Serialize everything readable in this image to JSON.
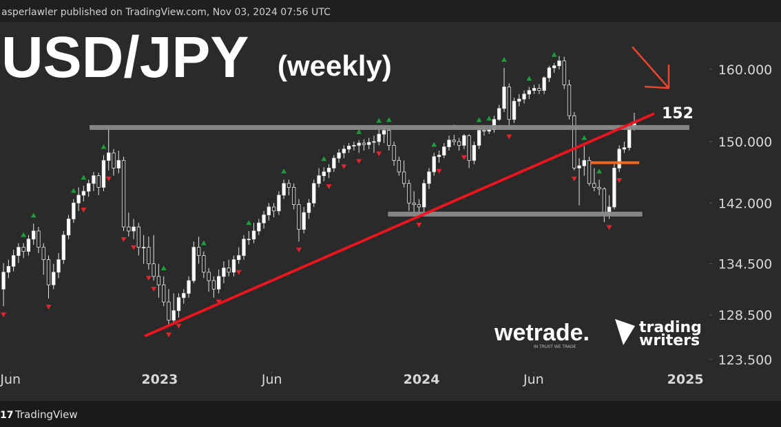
{
  "header": {
    "text": "asperlawler published on TradingView.com, Nov 03, 2024 07:56 UTC"
  },
  "footer": {
    "brand": "TradingView"
  },
  "watermarks": {
    "wetrade": "wetrade.",
    "wetrade_tagline": "IN TRUST WE TRADE",
    "writers_line1": "trading",
    "writers_line2": "writers"
  },
  "chart_data": {
    "type": "candlestick",
    "title": "USD/JPY",
    "subtitle": "(weekly)",
    "log_scale": true,
    "up_color": "#ffffff",
    "down_color": "#262626",
    "wick_color": "#e8e8e8",
    "xlim": [
      -0.7,
      141
    ],
    "xticks": [
      {
        "value": 1.4,
        "label": "Jun"
      },
      {
        "value": 31.2,
        "label": "2023"
      },
      {
        "value": 53.6,
        "label": "Jun"
      },
      {
        "value": 83.5,
        "label": "2024"
      },
      {
        "value": 105.9,
        "label": "Jun"
      },
      {
        "value": 136.2,
        "label": "2025"
      }
    ],
    "ylim": [
      122.2,
      167.1
    ],
    "yticks": [
      {
        "value": 160,
        "label": "160.000"
      },
      {
        "value": 150,
        "label": "150.000"
      },
      {
        "value": 142,
        "label": "142.000"
      },
      {
        "value": 134.5,
        "label": "134.500"
      },
      {
        "value": 128.5,
        "label": "128.500"
      },
      {
        "value": 123.5,
        "label": "123.500"
      }
    ],
    "ohlc": [
      [
        131.5,
        134.6,
        129.5,
        133.5
      ],
      [
        133.5,
        135.0,
        132.8,
        134.2
      ],
      [
        134.2,
        136.2,
        133.6,
        135.5
      ],
      [
        135.5,
        137.0,
        134.6,
        136.5
      ],
      [
        136.5,
        137.0,
        135.2,
        136.0
      ],
      [
        136.0,
        138.0,
        135.5,
        137.5
      ],
      [
        137.5,
        139.4,
        136.8,
        138.5
      ],
      [
        138.5,
        139.0,
        135.8,
        136.5
      ],
      [
        136.5,
        137.0,
        133.2,
        135.0
      ],
      [
        135.0,
        135.5,
        130.4,
        132.0
      ],
      [
        132.0,
        134.5,
        131.5,
        133.5
      ],
      [
        133.5,
        135.8,
        132.8,
        135.0
      ],
      [
        135.0,
        138.5,
        134.5,
        138.0
      ],
      [
        138.0,
        140.5,
        137.5,
        140.0
      ],
      [
        140.0,
        142.5,
        139.5,
        142.0
      ],
      [
        142.0,
        144.0,
        141.0,
        143.0
      ],
      [
        143.0,
        144.2,
        142.2,
        143.5
      ],
      [
        143.5,
        145.0,
        142.8,
        144.5
      ],
      [
        144.5,
        146.0,
        143.5,
        145.5
      ],
      [
        145.5,
        145.9,
        143.0,
        144.0
      ],
      [
        144.0,
        148.2,
        143.5,
        147.5
      ],
      [
        147.5,
        151.9,
        146.2,
        148.5
      ],
      [
        148.5,
        149.0,
        145.5,
        146.5
      ],
      [
        146.5,
        148.8,
        145.8,
        147.5
      ],
      [
        147.5,
        148.0,
        138.5,
        139.0
      ],
      [
        139.0,
        140.8,
        137.8,
        138.5
      ],
      [
        138.5,
        140.0,
        137.5,
        139.0
      ],
      [
        139.0,
        139.5,
        135.5,
        136.5
      ],
      [
        136.5,
        138.0,
        134.5,
        136.5
      ],
      [
        136.5,
        137.8,
        133.8,
        134.5
      ],
      [
        134.5,
        138.0,
        132.5,
        133.0
      ],
      [
        133.0,
        134.5,
        130.5,
        132.0
      ],
      [
        132.0,
        133.0,
        129.5,
        130.0
      ],
      [
        130.0,
        131.5,
        127.2,
        127.9
      ],
      [
        127.9,
        131.0,
        127.5,
        129.0
      ],
      [
        129.0,
        131.0,
        128.2,
        130.5
      ],
      [
        130.5,
        131.5,
        129.8,
        131.0
      ],
      [
        131.0,
        133.0,
        130.5,
        132.5
      ],
      [
        132.5,
        137.2,
        132.2,
        136.5
      ],
      [
        136.5,
        137.8,
        134.5,
        135.5
      ],
      [
        135.5,
        136.0,
        132.8,
        133.5
      ],
      [
        133.5,
        134.0,
        131.2,
        132.5
      ],
      [
        132.5,
        133.0,
        130.5,
        131.5
      ],
      [
        131.5,
        133.8,
        131.0,
        133.0
      ],
      [
        133.0,
        134.8,
        132.2,
        134.0
      ],
      [
        134.0,
        135.0,
        133.0,
        133.5
      ],
      [
        133.5,
        135.5,
        133.0,
        135.0
      ],
      [
        135.0,
        136.5,
        134.5,
        135.5
      ],
      [
        135.5,
        138.0,
        135.0,
        137.5
      ],
      [
        137.5,
        138.5,
        136.8,
        137.5
      ],
      [
        137.5,
        139.5,
        137.0,
        138.5
      ],
      [
        138.5,
        140.0,
        138.0,
        139.5
      ],
      [
        139.5,
        141.0,
        138.8,
        140.5
      ],
      [
        140.5,
        142.0,
        139.8,
        141.5
      ],
      [
        141.5,
        142.0,
        140.2,
        141.0
      ],
      [
        141.0,
        143.5,
        140.5,
        143.0
      ],
      [
        143.0,
        145.0,
        142.5,
        144.5
      ],
      [
        144.5,
        145.0,
        143.0,
        144.0
      ],
      [
        144.0,
        144.5,
        141.2,
        141.8
      ],
      [
        141.8,
        142.5,
        137.2,
        138.7
      ],
      [
        138.7,
        141.5,
        138.2,
        140.8
      ],
      [
        140.8,
        142.5,
        140.0,
        142.0
      ],
      [
        142.0,
        145.0,
        141.5,
        144.5
      ],
      [
        144.5,
        146.5,
        144.0,
        145.5
      ],
      [
        145.5,
        146.6,
        144.8,
        146.0
      ],
      [
        146.0,
        147.0,
        145.2,
        146.5
      ],
      [
        146.5,
        148.2,
        146.0,
        147.8
      ],
      [
        147.8,
        149.0,
        147.2,
        148.5
      ],
      [
        148.5,
        149.5,
        147.8,
        149.0
      ],
      [
        149.0,
        149.8,
        148.5,
        149.4
      ],
      [
        149.4,
        150.0,
        148.8,
        149.5
      ],
      [
        149.5,
        150.2,
        148.5,
        149.8
      ],
      [
        149.8,
        150.3,
        148.8,
        149.6
      ],
      [
        149.6,
        150.5,
        149.0,
        149.9
      ],
      [
        149.9,
        150.8,
        148.5,
        150.0
      ],
      [
        150.0,
        151.7,
        149.5,
        151.0
      ],
      [
        151.0,
        151.9,
        149.8,
        151.5
      ],
      [
        151.5,
        151.8,
        148.8,
        149.5
      ],
      [
        149.5,
        150.0,
        146.8,
        147.5
      ],
      [
        147.5,
        148.0,
        145.5,
        146.0
      ],
      [
        146.0,
        147.5,
        144.0,
        144.5
      ],
      [
        144.5,
        145.0,
        141.0,
        142.0
      ],
      [
        142.0,
        143.5,
        140.8,
        141.8
      ],
      [
        141.8,
        142.5,
        140.3,
        141.5
      ],
      [
        141.5,
        145.0,
        140.8,
        144.5
      ],
      [
        144.5,
        146.5,
        143.8,
        146.0
      ],
      [
        146.0,
        148.5,
        145.5,
        148.0
      ],
      [
        148.0,
        148.8,
        147.2,
        148.2
      ],
      [
        148.2,
        149.8,
        147.8,
        149.3
      ],
      [
        149.3,
        150.8,
        148.8,
        150.2
      ],
      [
        150.2,
        150.9,
        149.5,
        150.0
      ],
      [
        150.0,
        150.5,
        148.8,
        149.5
      ],
      [
        149.5,
        151.0,
        149.0,
        150.8
      ],
      [
        150.8,
        151.0,
        146.5,
        147.5
      ],
      [
        147.5,
        150.0,
        147.0,
        149.5
      ],
      [
        149.5,
        151.8,
        149.0,
        151.5
      ],
      [
        151.5,
        151.9,
        150.8,
        151.4
      ],
      [
        151.4,
        152.0,
        151.0,
        151.6
      ],
      [
        151.6,
        153.5,
        151.2,
        153.0
      ],
      [
        153.0,
        155.0,
        152.8,
        154.5
      ],
      [
        154.5,
        160.2,
        154.0,
        157.5
      ],
      [
        157.5,
        158.0,
        151.8,
        153.0
      ],
      [
        153.0,
        156.0,
        152.5,
        155.5
      ],
      [
        155.5,
        156.5,
        154.8,
        155.8
      ],
      [
        155.8,
        157.0,
        155.2,
        156.5
      ],
      [
        156.5,
        157.5,
        155.8,
        157.0
      ],
      [
        157.0,
        157.8,
        156.5,
        157.3
      ],
      [
        157.3,
        157.9,
        156.5,
        157.0
      ],
      [
        157.0,
        159.0,
        156.5,
        158.8
      ],
      [
        158.8,
        160.5,
        158.2,
        160.2
      ],
      [
        160.2,
        160.9,
        159.5,
        160.5
      ],
      [
        160.5,
        161.9,
        160.0,
        161.2
      ],
      [
        161.2,
        161.8,
        157.2,
        157.8
      ],
      [
        157.8,
        158.5,
        153.0,
        153.5
      ],
      [
        153.5,
        154.0,
        146.2,
        146.5
      ],
      [
        146.5,
        147.8,
        141.7,
        146.8
      ],
      [
        146.8,
        149.4,
        145.5,
        147.5
      ],
      [
        147.5,
        148.0,
        144.2,
        144.5
      ],
      [
        144.5,
        146.5,
        143.5,
        144.0
      ],
      [
        144.0,
        145.0,
        143.0,
        143.8
      ],
      [
        143.8,
        144.0,
        139.6,
        140.5
      ],
      [
        140.5,
        143.0,
        140.0,
        141.5
      ],
      [
        141.5,
        147.0,
        141.2,
        146.5
      ],
      [
        146.5,
        149.5,
        146.0,
        149.0
      ],
      [
        149.0,
        150.0,
        148.5,
        149.2
      ],
      [
        149.2,
        152.5,
        148.8,
        152.0
      ],
      [
        152.0,
        153.9,
        151.5,
        152.5
      ]
    ],
    "fractals_up": {
      "color": "#1e9b3a",
      "indices": [
        4,
        6,
        14,
        16,
        20,
        32,
        40,
        49,
        56,
        64,
        71,
        75,
        77,
        86,
        90,
        95,
        97,
        100,
        105,
        110,
        116,
        119
      ]
    },
    "fractals_down": {
      "color": "#e0262b",
      "indices": [
        0,
        9,
        16,
        21,
        24,
        26,
        29,
        30,
        33,
        35,
        43,
        47,
        59,
        65,
        68,
        71,
        75,
        83,
        87,
        92,
        101,
        114,
        121,
        123
      ]
    },
    "drawings": [
      {
        "color": "#8a8a8a",
        "width": 7,
        "from": [
          17.2,
          151.9
        ],
        "to": [
          137,
          151.9
        ]
      },
      {
        "color": "#8a8a8a",
        "width": 7,
        "from": [
          76.8,
          140.6
        ],
        "to": [
          127.6,
          140.6
        ]
      },
      {
        "color": "#ff6a1a",
        "width": 4,
        "from": [
          117.3,
          147.2
        ],
        "to": [
          127,
          147.2
        ]
      },
      {
        "color": "#f0141e",
        "width": 4,
        "from": [
          28.2,
          126.1
        ],
        "to": [
          130,
          153.8
        ]
      }
    ],
    "annotation": "152"
  }
}
